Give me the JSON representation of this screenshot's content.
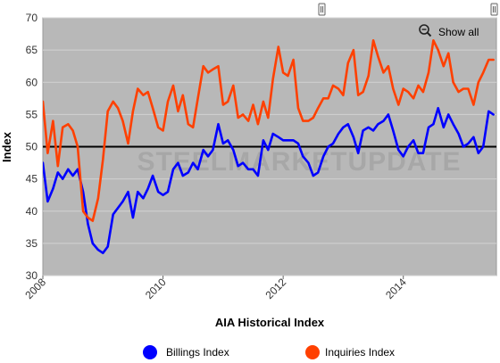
{
  "watermark": "STEELMARKETUPDATE",
  "controls": {
    "show_all_label": "Show all",
    "zoom_icon": "zoom-out-magnifier-icon",
    "range_handle_icon": "range-handle-icon"
  },
  "chart_data": {
    "type": "line",
    "title": "",
    "xlabel": "AIA Historical Index",
    "ylabel": "Index",
    "xlim": [
      2008.0,
      2015.55
    ],
    "ylim": [
      30,
      70
    ],
    "x_ticks": [
      2008,
      2010,
      2012,
      2014
    ],
    "x_tick_labels": [
      "2008",
      "2010",
      "2012",
      "2014"
    ],
    "y_ticks": [
      30,
      35,
      40,
      45,
      50,
      55,
      60,
      65,
      70
    ],
    "y_tick_labels": [
      "30",
      "35",
      "40",
      "45",
      "50",
      "55",
      "60",
      "65",
      "70"
    ],
    "reference_line": 50,
    "grid": true,
    "legend_position": "bottom",
    "series": [
      {
        "name": "Billings Index",
        "color": "#0000ff",
        "points": [
          [
            2008.0,
            47.5
          ],
          [
            2008.08,
            41.5
          ],
          [
            2008.17,
            43.5
          ],
          [
            2008.25,
            46.0
          ],
          [
            2008.33,
            45.0
          ],
          [
            2008.42,
            46.5
          ],
          [
            2008.5,
            45.5
          ],
          [
            2008.58,
            46.5
          ],
          [
            2008.67,
            43.0
          ],
          [
            2008.75,
            38.0
          ],
          [
            2008.83,
            35.0
          ],
          [
            2008.92,
            34.0
          ],
          [
            2009.0,
            33.5
          ],
          [
            2009.08,
            34.5
          ],
          [
            2009.17,
            39.5
          ],
          [
            2009.25,
            40.5
          ],
          [
            2009.33,
            41.5
          ],
          [
            2009.42,
            43.0
          ],
          [
            2009.5,
            39.0
          ],
          [
            2009.58,
            43.0
          ],
          [
            2009.67,
            42.0
          ],
          [
            2009.75,
            43.5
          ],
          [
            2009.83,
            45.5
          ],
          [
            2009.92,
            43.0
          ],
          [
            2010.0,
            42.5
          ],
          [
            2010.08,
            43.0
          ],
          [
            2010.17,
            46.5
          ],
          [
            2010.25,
            47.5
          ],
          [
            2010.33,
            45.5
          ],
          [
            2010.42,
            46.0
          ],
          [
            2010.5,
            47.5
          ],
          [
            2010.58,
            46.5
          ],
          [
            2010.67,
            49.5
          ],
          [
            2010.75,
            48.5
          ],
          [
            2010.83,
            49.5
          ],
          [
            2010.92,
            53.5
          ],
          [
            2011.0,
            50.5
          ],
          [
            2011.08,
            51.0
          ],
          [
            2011.17,
            49.5
          ],
          [
            2011.25,
            47.0
          ],
          [
            2011.33,
            47.5
          ],
          [
            2011.42,
            46.5
          ],
          [
            2011.5,
            46.5
          ],
          [
            2011.58,
            45.5
          ],
          [
            2011.67,
            51.0
          ],
          [
            2011.75,
            49.5
          ],
          [
            2011.83,
            52.0
          ],
          [
            2011.92,
            51.5
          ],
          [
            2012.0,
            51.0
          ],
          [
            2012.08,
            51.0
          ],
          [
            2012.17,
            51.0
          ],
          [
            2012.25,
            50.5
          ],
          [
            2012.33,
            48.5
          ],
          [
            2012.42,
            47.5
          ],
          [
            2012.5,
            45.5
          ],
          [
            2012.58,
            46.0
          ],
          [
            2012.67,
            48.5
          ],
          [
            2012.75,
            50.0
          ],
          [
            2012.83,
            50.5
          ],
          [
            2012.92,
            52.0
          ],
          [
            2013.0,
            53.0
          ],
          [
            2013.08,
            53.5
          ],
          [
            2013.17,
            51.5
          ],
          [
            2013.25,
            49.0
          ],
          [
            2013.33,
            52.5
          ],
          [
            2013.42,
            53.0
          ],
          [
            2013.5,
            52.5
          ],
          [
            2013.58,
            53.5
          ],
          [
            2013.67,
            54.0
          ],
          [
            2013.75,
            55.0
          ],
          [
            2013.83,
            52.5
          ],
          [
            2013.92,
            49.5
          ],
          [
            2014.0,
            48.5
          ],
          [
            2014.08,
            50.0
          ],
          [
            2014.17,
            51.0
          ],
          [
            2014.25,
            49.0
          ],
          [
            2014.33,
            49.0
          ],
          [
            2014.42,
            53.0
          ],
          [
            2014.5,
            53.5
          ],
          [
            2014.58,
            56.0
          ],
          [
            2014.67,
            53.0
          ],
          [
            2014.75,
            55.0
          ],
          [
            2014.83,
            53.5
          ],
          [
            2014.92,
            52.0
          ],
          [
            2015.0,
            50.0
          ],
          [
            2015.08,
            50.5
          ],
          [
            2015.17,
            51.5
          ],
          [
            2015.25,
            49.0
          ],
          [
            2015.33,
            50.0
          ],
          [
            2015.42,
            55.5
          ],
          [
            2015.5,
            55.0
          ]
        ]
      },
      {
        "name": "Inquiries Index",
        "color": "#ff4000",
        "points": [
          [
            2008.0,
            57.0
          ],
          [
            2008.08,
            49.0
          ],
          [
            2008.17,
            54.0
          ],
          [
            2008.25,
            47.0
          ],
          [
            2008.33,
            53.0
          ],
          [
            2008.42,
            53.5
          ],
          [
            2008.5,
            52.5
          ],
          [
            2008.58,
            50.0
          ],
          [
            2008.67,
            40.0
          ],
          [
            2008.75,
            39.0
          ],
          [
            2008.83,
            38.5
          ],
          [
            2008.92,
            42.0
          ],
          [
            2009.0,
            48.0
          ],
          [
            2009.08,
            55.5
          ],
          [
            2009.17,
            57.0
          ],
          [
            2009.25,
            56.0
          ],
          [
            2009.33,
            54.0
          ],
          [
            2009.42,
            50.5
          ],
          [
            2009.5,
            55.5
          ],
          [
            2009.58,
            59.0
          ],
          [
            2009.67,
            58.0
          ],
          [
            2009.75,
            58.5
          ],
          [
            2009.83,
            56.0
          ],
          [
            2009.92,
            53.0
          ],
          [
            2010.0,
            52.5
          ],
          [
            2010.08,
            57.0
          ],
          [
            2010.17,
            59.5
          ],
          [
            2010.25,
            55.5
          ],
          [
            2010.33,
            58.0
          ],
          [
            2010.42,
            53.5
          ],
          [
            2010.5,
            53.0
          ],
          [
            2010.58,
            57.5
          ],
          [
            2010.67,
            62.5
          ],
          [
            2010.75,
            61.5
          ],
          [
            2010.83,
            62.0
          ],
          [
            2010.92,
            62.5
          ],
          [
            2011.0,
            56.5
          ],
          [
            2011.08,
            57.0
          ],
          [
            2011.17,
            59.5
          ],
          [
            2011.25,
            54.5
          ],
          [
            2011.33,
            55.0
          ],
          [
            2011.42,
            54.0
          ],
          [
            2011.5,
            56.5
          ],
          [
            2011.58,
            53.5
          ],
          [
            2011.67,
            57.0
          ],
          [
            2011.75,
            54.5
          ],
          [
            2011.83,
            60.5
          ],
          [
            2011.92,
            65.5
          ],
          [
            2012.0,
            61.5
          ],
          [
            2012.08,
            61.0
          ],
          [
            2012.17,
            63.5
          ],
          [
            2012.25,
            56.0
          ],
          [
            2012.33,
            54.0
          ],
          [
            2012.42,
            54.0
          ],
          [
            2012.5,
            54.5
          ],
          [
            2012.58,
            56.0
          ],
          [
            2012.67,
            57.5
          ],
          [
            2012.75,
            57.5
          ],
          [
            2012.83,
            59.5
          ],
          [
            2012.92,
            59.0
          ],
          [
            2013.0,
            58.0
          ],
          [
            2013.08,
            63.0
          ],
          [
            2013.17,
            65.0
          ],
          [
            2013.25,
            58.0
          ],
          [
            2013.33,
            58.5
          ],
          [
            2013.42,
            61.0
          ],
          [
            2013.5,
            66.5
          ],
          [
            2013.58,
            64.0
          ],
          [
            2013.67,
            61.5
          ],
          [
            2013.75,
            62.5
          ],
          [
            2013.83,
            59.0
          ],
          [
            2013.92,
            56.5
          ],
          [
            2014.0,
            59.0
          ],
          [
            2014.08,
            58.5
          ],
          [
            2014.17,
            57.5
          ],
          [
            2014.25,
            59.5
          ],
          [
            2014.33,
            58.5
          ],
          [
            2014.42,
            61.5
          ],
          [
            2014.5,
            66.5
          ],
          [
            2014.58,
            65.0
          ],
          [
            2014.67,
            62.5
          ],
          [
            2014.75,
            64.5
          ],
          [
            2014.83,
            60.0
          ],
          [
            2014.92,
            58.5
          ],
          [
            2015.0,
            59.0
          ],
          [
            2015.08,
            59.0
          ],
          [
            2015.17,
            56.5
          ],
          [
            2015.25,
            60.0
          ],
          [
            2015.33,
            61.5
          ],
          [
            2015.42,
            63.5
          ],
          [
            2015.5,
            63.5
          ]
        ]
      }
    ]
  }
}
